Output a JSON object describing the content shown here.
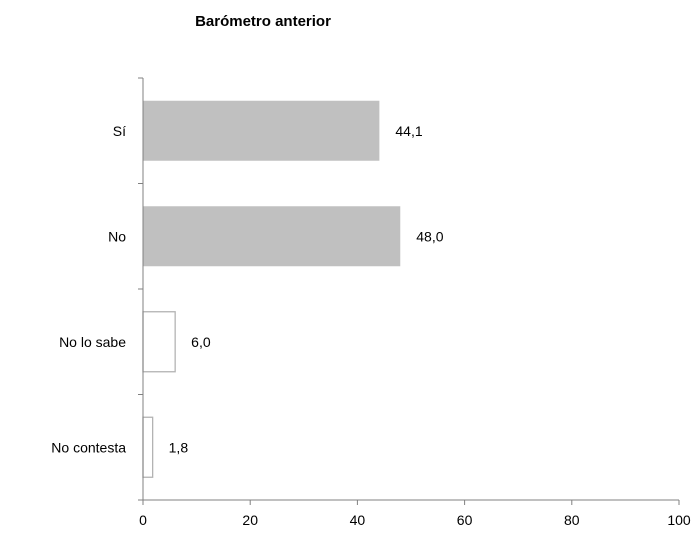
{
  "chart_data": {
    "type": "bar",
    "orientation": "horizontal",
    "title": "Barómetro anterior",
    "categories": [
      "Sí",
      "No",
      "No lo sabe",
      "No contesta"
    ],
    "values": [
      44.1,
      48.0,
      6.0,
      1.8
    ],
    "value_labels": [
      "44,1",
      "48,0",
      "6,0",
      "1,8"
    ],
    "bar_styles": [
      "filled",
      "filled",
      "outline",
      "outline"
    ],
    "xlim": [
      0,
      100
    ],
    "xticks": [
      0,
      20,
      40,
      60,
      80,
      100
    ],
    "xlabel": "",
    "ylabel": "",
    "grid": false,
    "legend": "none",
    "colors": {
      "filled": "#c0c0c0",
      "outline_stroke": "#b3b3b3",
      "axis": "#808080"
    }
  }
}
